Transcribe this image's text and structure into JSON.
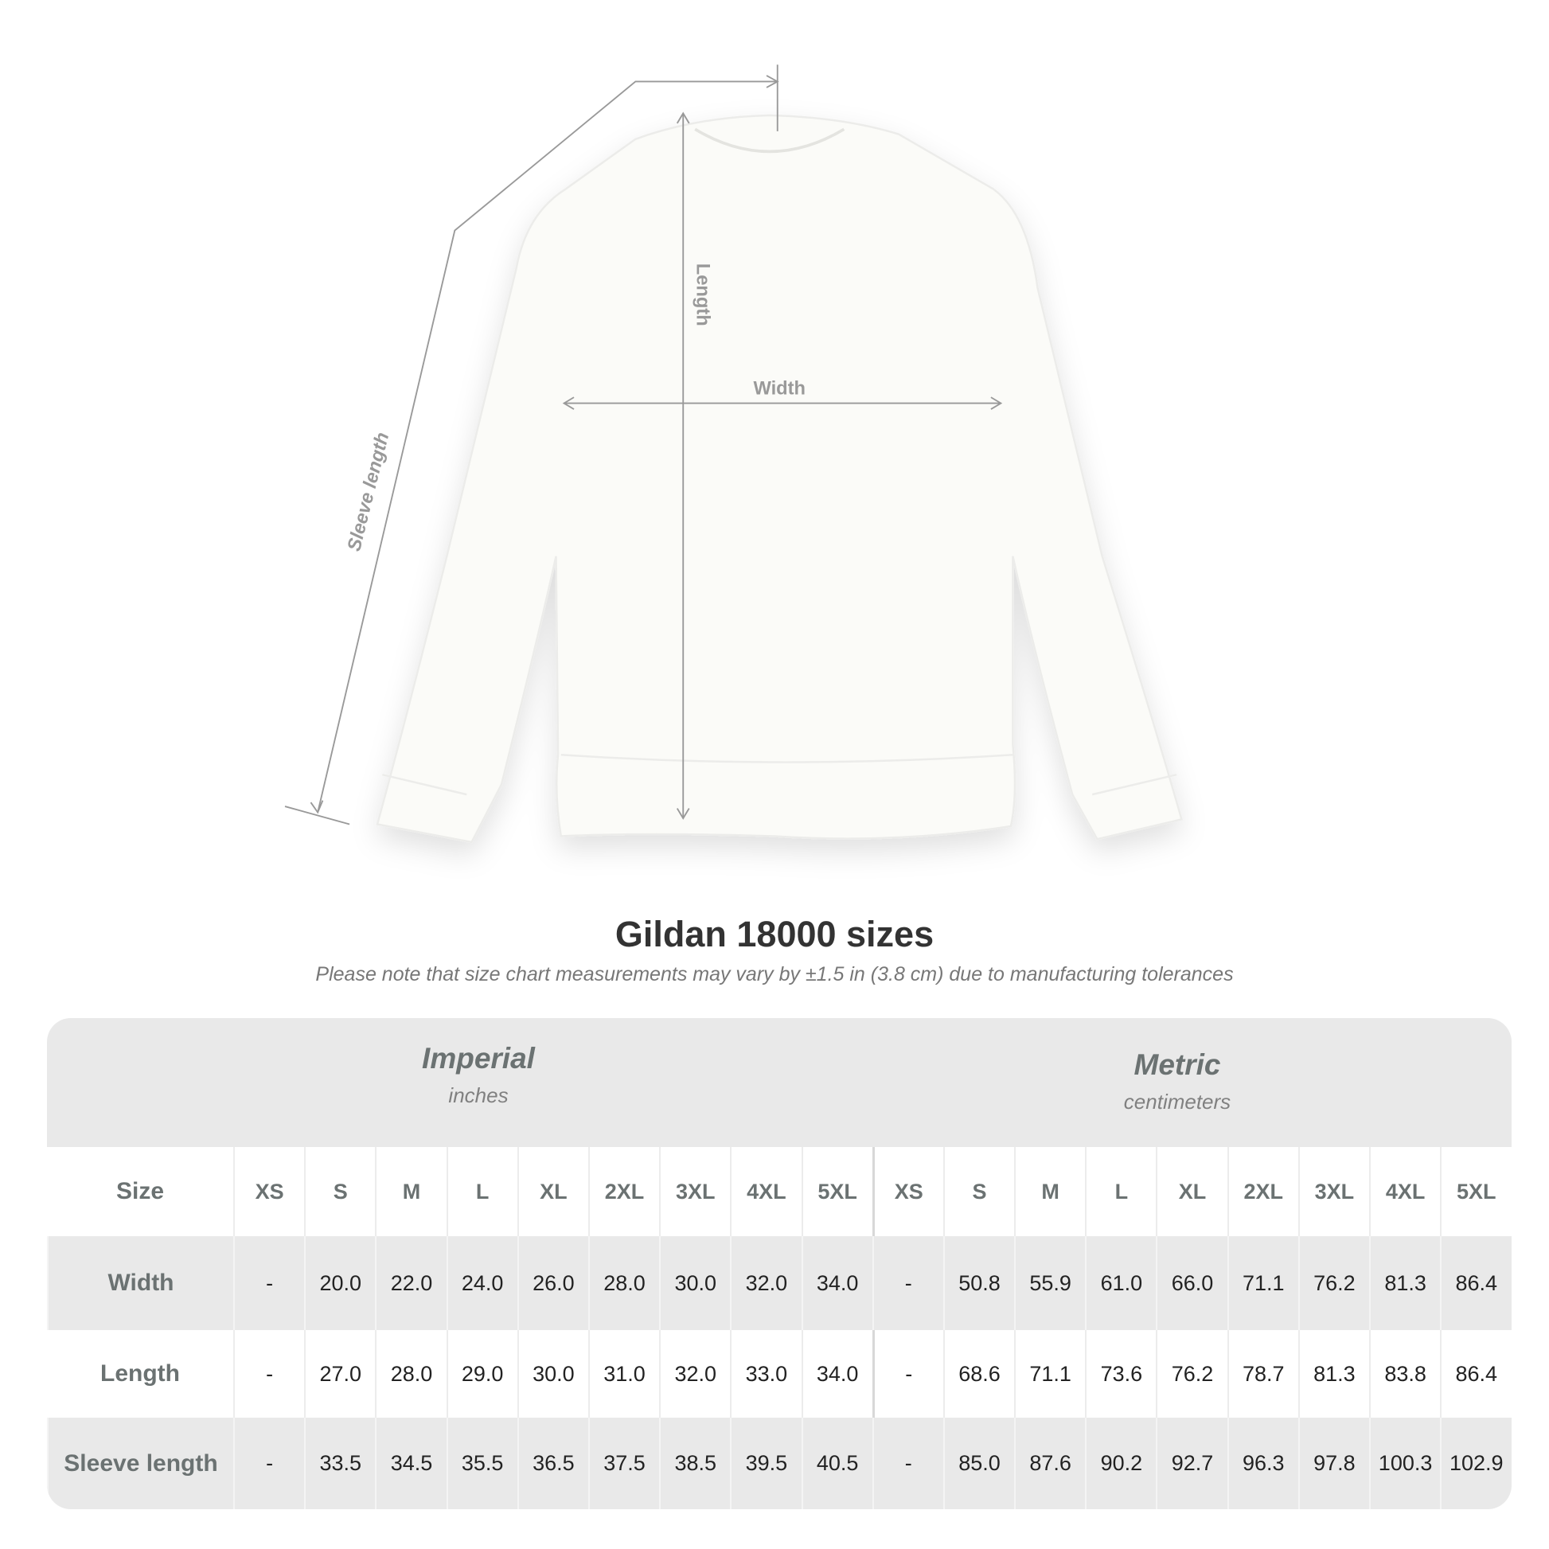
{
  "diagram": {
    "labels": {
      "length": "Length",
      "width": "Width",
      "sleeve": "Sleeve length"
    }
  },
  "title": "Gildan 18000 sizes",
  "subtitle": "Please note that size chart measurements may vary by ±1.5 in (3.8 cm) due to manufacturing tolerances",
  "table": {
    "imperial": {
      "name": "Imperial",
      "unit": "inches"
    },
    "metric": {
      "name": "Metric",
      "unit": "centimeters"
    },
    "size_label": "Size",
    "sizes": [
      "XS",
      "S",
      "M",
      "L",
      "XL",
      "2XL",
      "3XL",
      "4XL",
      "5XL"
    ],
    "rows": [
      {
        "label": "Width",
        "imperial": [
          "-",
          "20.0",
          "22.0",
          "24.0",
          "26.0",
          "28.0",
          "30.0",
          "32.0",
          "34.0"
        ],
        "metric": [
          "-",
          "50.8",
          "55.9",
          "61.0",
          "66.0",
          "71.1",
          "76.2",
          "81.3",
          "86.4"
        ]
      },
      {
        "label": "Length",
        "imperial": [
          "-",
          "27.0",
          "28.0",
          "29.0",
          "30.0",
          "31.0",
          "32.0",
          "33.0",
          "34.0"
        ],
        "metric": [
          "-",
          "68.6",
          "71.1",
          "73.6",
          "76.2",
          "78.7",
          "81.3",
          "83.8",
          "86.4"
        ]
      },
      {
        "label": "Sleeve length",
        "imperial": [
          "-",
          "33.5",
          "34.5",
          "35.5",
          "36.5",
          "37.5",
          "38.5",
          "39.5",
          "40.5"
        ],
        "metric": [
          "-",
          "85.0",
          "87.6",
          "90.2",
          "92.7",
          "96.3",
          "97.8",
          "100.3",
          "102.9"
        ]
      }
    ]
  },
  "colors": {
    "band": "#e9e9e9",
    "header_text": "#6b7272",
    "measure_line": "#999999"
  }
}
